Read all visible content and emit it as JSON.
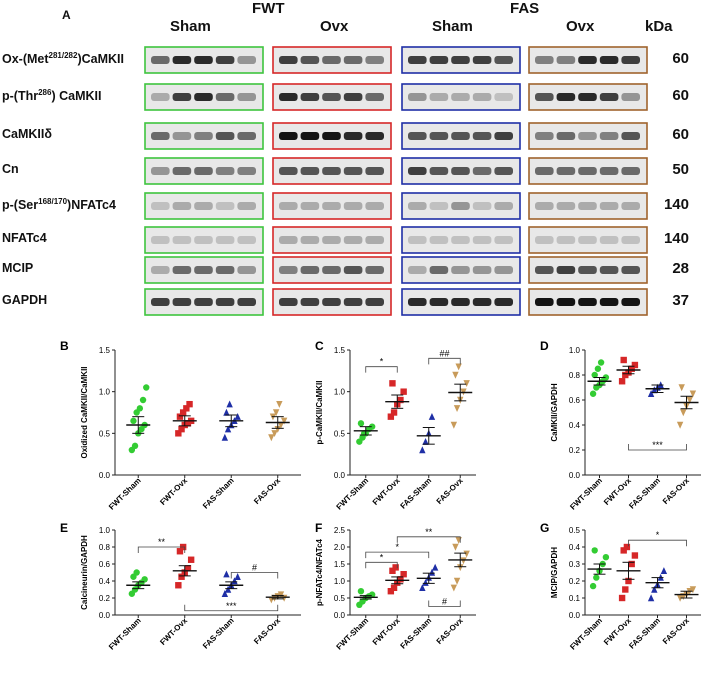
{
  "panel_a": {
    "letter": "A",
    "groups": [
      "FWT",
      "FAS"
    ],
    "columns": [
      "Sham",
      "Ovx",
      "Sham",
      "Ovx"
    ],
    "kda_header": "kDa",
    "box_colors": [
      "#3ec43e",
      "#d62728",
      "#1f2fa6",
      "#a0632d"
    ],
    "rows": [
      {
        "label_pre": "Ox-(Met",
        "label_sup": "281/282",
        "label_post": ")CaMKII",
        "kda": "60"
      },
      {
        "label_pre": "p-(Thr",
        "label_sup": "286",
        "label_post": ") CaMKII",
        "kda": "60"
      },
      {
        "label_pre": "CaMKIIδ",
        "label_sup": "",
        "label_post": "",
        "kda": "60"
      },
      {
        "label_pre": "Cn",
        "label_sup": "",
        "label_post": "",
        "kda": "50"
      },
      {
        "label_pre": "p-(Ser",
        "label_sup": "168/170",
        "label_post": ")NFATc4",
        "kda": "140"
      },
      {
        "label_pre": "NFATc4",
        "label_sup": "",
        "label_post": "",
        "kda": "140"
      },
      {
        "label_pre": "MCIP",
        "label_sup": "",
        "label_post": "",
        "kda": "28"
      },
      {
        "label_pre": "GAPDH",
        "label_sup": "",
        "label_post": "",
        "kda": "37"
      }
    ]
  },
  "chart_data": [
    {
      "panel": "B",
      "type": "scatter",
      "ylabel": "Oxidized CaMKII/CaMKII",
      "ylim": [
        0,
        1.5
      ],
      "yticks": [
        "0.0",
        "0.5",
        "1.0",
        "1.5"
      ],
      "categories": [
        "FWT-Sham",
        "FWT-Ovx",
        "FAS-Sham",
        "FAS-Ovx"
      ],
      "means": [
        0.6,
        0.65,
        0.65,
        0.63
      ],
      "sems": [
        0.1,
        0.06,
        0.07,
        0.07
      ],
      "points": [
        [
          0.3,
          0.35,
          0.5,
          0.55,
          0.6,
          0.65,
          0.75,
          0.8,
          0.9,
          1.05
        ],
        [
          0.5,
          0.55,
          0.6,
          0.62,
          0.65,
          0.7,
          0.75,
          0.8,
          0.85
        ],
        [
          0.45,
          0.55,
          0.6,
          0.65,
          0.7,
          0.75,
          0.85
        ],
        [
          0.45,
          0.5,
          0.55,
          0.6,
          0.65,
          0.7,
          0.75,
          0.85
        ]
      ],
      "annotations": []
    },
    {
      "panel": "C",
      "type": "scatter",
      "ylabel": "p-CaMKII/CaMKII",
      "ylim": [
        0,
        1.5
      ],
      "yticks": [
        "0.0",
        "0.5",
        "1.0",
        "1.5"
      ],
      "categories": [
        "FWT-Sham",
        "FWT-Ovx",
        "FAS-Sham",
        "FAS-Ovx"
      ],
      "means": [
        0.53,
        0.88,
        0.47,
        0.99
      ],
      "sems": [
        0.05,
        0.08,
        0.1,
        0.1
      ],
      "points": [
        [
          0.4,
          0.45,
          0.5,
          0.55,
          0.58,
          0.62,
          0.5
        ],
        [
          0.7,
          0.75,
          0.85,
          0.9,
          1.0,
          1.1
        ],
        [
          0.3,
          0.4,
          0.5,
          0.7
        ],
        [
          0.6,
          0.8,
          0.9,
          1.0,
          1.1,
          1.2,
          1.3
        ]
      ],
      "annotations": [
        {
          "from": 0,
          "to": 1,
          "y": 1.3,
          "text": "*"
        },
        {
          "from": 2,
          "to": 3,
          "y": 1.4,
          "text": "##"
        }
      ]
    },
    {
      "panel": "D",
      "type": "scatter",
      "ylabel": "CaMKII/GAPDH",
      "ylim": [
        0,
        1.0
      ],
      "yticks": [
        "0.0",
        "0.2",
        "0.4",
        "0.6",
        "0.8",
        "1.0"
      ],
      "categories": [
        "FWT-Sham",
        "FWT-Ovx",
        "FAS-Sham",
        "FAS-Ovx"
      ],
      "means": [
        0.75,
        0.84,
        0.69,
        0.58
      ],
      "sems": [
        0.03,
        0.03,
        0.03,
        0.05
      ],
      "points": [
        [
          0.65,
          0.7,
          0.72,
          0.75,
          0.78,
          0.8,
          0.85,
          0.9
        ],
        [
          0.75,
          0.8,
          0.82,
          0.85,
          0.88,
          0.92
        ],
        [
          0.65,
          0.68,
          0.7,
          0.72
        ],
        [
          0.4,
          0.5,
          0.55,
          0.6,
          0.65,
          0.7
        ]
      ],
      "annotations": [
        {
          "from": 1,
          "to": 3,
          "y": 0.2,
          "text": "***",
          "below": true
        }
      ]
    },
    {
      "panel": "E",
      "type": "scatter",
      "ylabel": "Calcineurin/GAPDH",
      "ylim": [
        0,
        1.0
      ],
      "yticks": [
        "0.0",
        "0.2",
        "0.4",
        "0.6",
        "0.8",
        "1.0"
      ],
      "categories": [
        "FWT-Sham",
        "FWT-Ovx",
        "FAS-Sham",
        "FAS-Ovx"
      ],
      "means": [
        0.35,
        0.52,
        0.35,
        0.21
      ],
      "sems": [
        0.04,
        0.06,
        0.04,
        0.02
      ],
      "points": [
        [
          0.25,
          0.3,
          0.35,
          0.38,
          0.42,
          0.45,
          0.5
        ],
        [
          0.35,
          0.45,
          0.5,
          0.55,
          0.65,
          0.75,
          0.8
        ],
        [
          0.25,
          0.3,
          0.35,
          0.4,
          0.45,
          0.48
        ],
        [
          0.18,
          0.2,
          0.22,
          0.24,
          0.2
        ]
      ],
      "annotations": [
        {
          "from": 0,
          "to": 1,
          "y": 0.8,
          "text": "**"
        },
        {
          "from": 2,
          "to": 3,
          "y": 0.5,
          "text": "#"
        },
        {
          "from": 1,
          "to": 3,
          "y": 0.05,
          "text": "***",
          "below": true
        }
      ]
    },
    {
      "panel": "F",
      "type": "scatter",
      "ylabel": "p-NFATc4/NFATc4",
      "ylim": [
        0,
        2.5
      ],
      "yticks": [
        "0.0",
        "0.5",
        "1.0",
        "1.5",
        "2.0",
        "2.5"
      ],
      "categories": [
        "FWT-Sham",
        "FWT-Ovx",
        "FAS-Sham",
        "FAS-Ovx"
      ],
      "means": [
        0.52,
        1.02,
        1.08,
        1.62
      ],
      "sems": [
        0.05,
        0.1,
        0.15,
        0.2
      ],
      "points": [
        [
          0.3,
          0.4,
          0.5,
          0.55,
          0.6,
          0.7
        ],
        [
          0.7,
          0.8,
          0.95,
          1.05,
          1.2,
          1.3,
          1.4
        ],
        [
          0.8,
          0.95,
          1.1,
          1.25,
          1.4
        ],
        [
          0.8,
          1.0,
          1.4,
          1.6,
          1.8,
          2.0,
          2.2
        ]
      ],
      "annotations": [
        {
          "from": 0,
          "to": 1,
          "y": 1.55,
          "text": "*"
        },
        {
          "from": 0,
          "to": 2,
          "y": 1.85,
          "text": "*"
        },
        {
          "from": 1,
          "to": 3,
          "y": 2.3,
          "text": "**"
        },
        {
          "from": 2,
          "to": 3,
          "y": 0.25,
          "text": "#",
          "below": true
        }
      ]
    },
    {
      "panel": "G",
      "type": "scatter",
      "ylabel": "MCIP/GAPDH",
      "ylim": [
        0,
        0.5
      ],
      "yticks": [
        "0.0",
        "0.1",
        "0.2",
        "0.3",
        "0.4",
        "0.5"
      ],
      "categories": [
        "FWT-Sham",
        "FWT-Ovx",
        "FAS-Sham",
        "FAS-Ovx"
      ],
      "means": [
        0.27,
        0.26,
        0.19,
        0.12
      ],
      "sems": [
        0.03,
        0.05,
        0.03,
        0.02
      ],
      "points": [
        [
          0.17,
          0.22,
          0.26,
          0.3,
          0.34,
          0.38
        ],
        [
          0.1,
          0.15,
          0.2,
          0.3,
          0.35,
          0.38,
          0.4
        ],
        [
          0.1,
          0.15,
          0.18,
          0.22,
          0.26
        ],
        [
          0.1,
          0.11,
          0.12,
          0.14,
          0.15
        ]
      ],
      "annotations": [
        {
          "from": 1,
          "to": 3,
          "y": 0.44,
          "text": "*"
        }
      ]
    }
  ],
  "scatter_colors": [
    "#33cc33",
    "#d62728",
    "#1f2fa6",
    "#c89b5a"
  ]
}
